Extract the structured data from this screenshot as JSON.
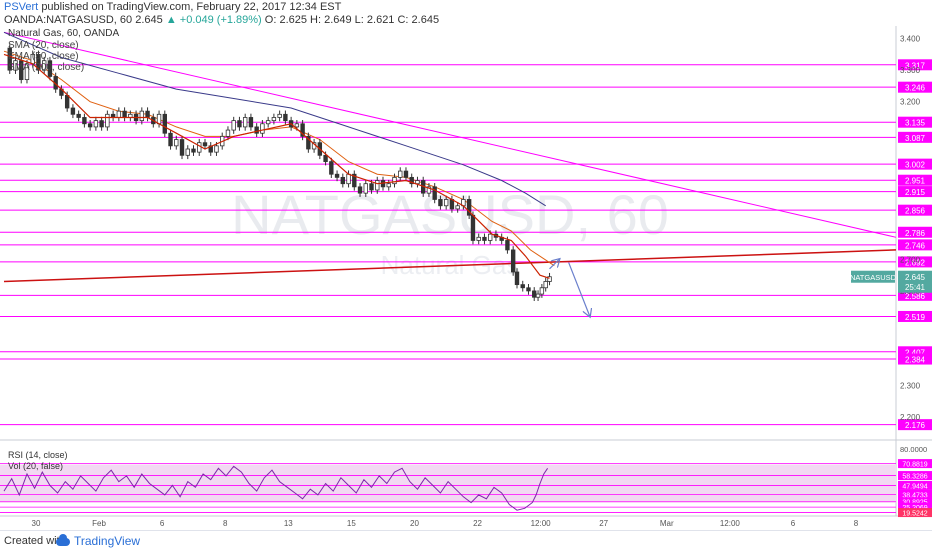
{
  "header": {
    "author": "PSVert",
    "published": "published on TradingView.com, February 22, 2017 12:34 EST",
    "symbol": "OANDA:NATGASUSD, 60",
    "last": "2.645",
    "change": "▲ +0.049 (+1.89%)",
    "ohlc": "O: 2.625 H: 2.649 L: 2.621 C: 2.645"
  },
  "legend": {
    "title": "Natural Gas, 60, OANDA",
    "ind1": "SMA (20, close)",
    "ind2": "EMA (50, close)",
    "ind3": "SMA (200, close)"
  },
  "watermark": {
    "main": "NATGASUSD, 60",
    "sub": "Natural Gas"
  },
  "footer": {
    "created": "Created with",
    "brand": "TradingView"
  },
  "colors": {
    "price_line": "#ff00ff",
    "trend_red": "#cc1111",
    "sma20": "#cc2200",
    "ema50": "#e06010",
    "sma200": "#3a3a8a",
    "rsi": "#7b2aa8",
    "rsi_band": "#f2d9f2",
    "arrow": "#6a7fcc"
  },
  "chart_data": {
    "type": "line",
    "title": "Natural Gas, 60, OANDA",
    "ylim": [
      2.14,
      3.44
    ],
    "x_ticks": [
      "30",
      "Feb",
      "6",
      "8",
      "13",
      "15",
      "20",
      "22",
      "12:00",
      "27",
      "Mar",
      "12:00",
      "6",
      "8"
    ],
    "y_ticks": [
      "3.400",
      "3.300",
      "3.200",
      "2.700",
      "2.600",
      "2.300",
      "2.200"
    ],
    "horizontal_levels": [
      3.317,
      3.246,
      3.135,
      3.087,
      3.002,
      2.951,
      2.915,
      2.856,
      2.786,
      2.746,
      2.692,
      2.586,
      2.519,
      2.407,
      2.384,
      2.176
    ],
    "level_labels": [
      "3.317",
      "3.246",
      "3.135",
      "3.087",
      "3.002",
      "2.951",
      "2.915",
      "2.856",
      "2.786",
      "2.746",
      "2.692",
      "2.586",
      "2.519",
      "2.407",
      "2.384",
      "2.176"
    ],
    "last_price_label": {
      "name": "NATGASUSD",
      "value": "2.645",
      "countdown": "25:41"
    },
    "price_series": [
      [
        0,
        3.37
      ],
      [
        6,
        3.3
      ],
      [
        12,
        3.33
      ],
      [
        18,
        3.27
      ],
      [
        24,
        3.32
      ],
      [
        30,
        3.35
      ],
      [
        36,
        3.3
      ],
      [
        42,
        3.33
      ],
      [
        48,
        3.28
      ],
      [
        54,
        3.24
      ],
      [
        60,
        3.22
      ],
      [
        66,
        3.18
      ],
      [
        72,
        3.16
      ],
      [
        78,
        3.15
      ],
      [
        84,
        3.13
      ],
      [
        90,
        3.12
      ],
      [
        96,
        3.14
      ],
      [
        102,
        3.12
      ],
      [
        108,
        3.16
      ],
      [
        114,
        3.15
      ],
      [
        120,
        3.17
      ],
      [
        126,
        3.15
      ],
      [
        132,
        3.16
      ],
      [
        138,
        3.14
      ],
      [
        144,
        3.17
      ],
      [
        150,
        3.15
      ],
      [
        156,
        3.13
      ],
      [
        162,
        3.16
      ],
      [
        168,
        3.1
      ],
      [
        174,
        3.06
      ],
      [
        180,
        3.08
      ],
      [
        186,
        3.03
      ],
      [
        192,
        3.05
      ],
      [
        198,
        3.04
      ],
      [
        204,
        3.07
      ],
      [
        210,
        3.06
      ],
      [
        216,
        3.04
      ],
      [
        222,
        3.06
      ],
      [
        228,
        3.09
      ],
      [
        234,
        3.11
      ],
      [
        240,
        3.14
      ],
      [
        246,
        3.12
      ],
      [
        252,
        3.15
      ],
      [
        258,
        3.12
      ],
      [
        264,
        3.1
      ],
      [
        270,
        3.13
      ],
      [
        276,
        3.14
      ],
      [
        282,
        3.15
      ],
      [
        288,
        3.16
      ],
      [
        294,
        3.14
      ],
      [
        300,
        3.12
      ],
      [
        306,
        3.13
      ],
      [
        312,
        3.09
      ],
      [
        318,
        3.05
      ],
      [
        324,
        3.07
      ],
      [
        330,
        3.03
      ],
      [
        336,
        3.01
      ],
      [
        342,
        2.97
      ],
      [
        348,
        2.96
      ],
      [
        354,
        2.94
      ],
      [
        360,
        2.97
      ],
      [
        366,
        2.93
      ],
      [
        372,
        2.91
      ],
      [
        378,
        2.94
      ],
      [
        384,
        2.92
      ],
      [
        390,
        2.95
      ],
      [
        396,
        2.93
      ],
      [
        402,
        2.94
      ],
      [
        408,
        2.96
      ],
      [
        414,
        2.98
      ],
      [
        420,
        2.96
      ],
      [
        426,
        2.94
      ],
      [
        432,
        2.95
      ],
      [
        438,
        2.91
      ],
      [
        444,
        2.93
      ],
      [
        450,
        2.89
      ],
      [
        456,
        2.87
      ],
      [
        462,
        2.89
      ],
      [
        468,
        2.86
      ],
      [
        474,
        2.87
      ],
      [
        480,
        2.89
      ],
      [
        486,
        2.84
      ],
      [
        490,
        2.76
      ],
      [
        496,
        2.77
      ],
      [
        502,
        2.76
      ],
      [
        508,
        2.78
      ],
      [
        514,
        2.77
      ],
      [
        520,
        2.76
      ],
      [
        526,
        2.73
      ],
      [
        532,
        2.66
      ],
      [
        536,
        2.62
      ],
      [
        542,
        2.61
      ],
      [
        548,
        2.6
      ],
      [
        554,
        2.58
      ],
      [
        558,
        2.59
      ],
      [
        562,
        2.61
      ],
      [
        566,
        2.63
      ],
      [
        570,
        2.645
      ]
    ],
    "sma20_series": [
      [
        0,
        3.35
      ],
      [
        30,
        3.32
      ],
      [
        60,
        3.24
      ],
      [
        90,
        3.15
      ],
      [
        120,
        3.15
      ],
      [
        150,
        3.15
      ],
      [
        180,
        3.1
      ],
      [
        210,
        3.05
      ],
      [
        240,
        3.09
      ],
      [
        270,
        3.11
      ],
      [
        300,
        3.13
      ],
      [
        330,
        3.05
      ],
      [
        360,
        2.97
      ],
      [
        390,
        2.94
      ],
      [
        420,
        2.95
      ],
      [
        450,
        2.92
      ],
      [
        480,
        2.87
      ],
      [
        510,
        2.78
      ],
      [
        530,
        2.76
      ],
      [
        545,
        2.71
      ],
      [
        560,
        2.65
      ],
      [
        570,
        2.64
      ]
    ],
    "ema50_series": [
      [
        0,
        3.36
      ],
      [
        30,
        3.33
      ],
      [
        60,
        3.27
      ],
      [
        90,
        3.2
      ],
      [
        120,
        3.17
      ],
      [
        150,
        3.16
      ],
      [
        180,
        3.12
      ],
      [
        210,
        3.09
      ],
      [
        240,
        3.09
      ],
      [
        270,
        3.11
      ],
      [
        300,
        3.12
      ],
      [
        330,
        3.08
      ],
      [
        360,
        3.01
      ],
      [
        390,
        2.97
      ],
      [
        420,
        2.96
      ],
      [
        450,
        2.93
      ],
      [
        480,
        2.89
      ],
      [
        510,
        2.82
      ],
      [
        530,
        2.79
      ],
      [
        550,
        2.73
      ],
      [
        575,
        2.68
      ]
    ],
    "sma200_series": [
      [
        0,
        3.42
      ],
      [
        60,
        3.34
      ],
      [
        120,
        3.29
      ],
      [
        180,
        3.24
      ],
      [
        240,
        3.21
      ],
      [
        300,
        3.18
      ],
      [
        360,
        3.12
      ],
      [
        420,
        3.06
      ],
      [
        480,
        3.0
      ],
      [
        520,
        2.95
      ],
      [
        545,
        2.91
      ],
      [
        566,
        2.87
      ]
    ],
    "descending_trendline": [
      [
        0,
        3.42
      ],
      [
        932,
        2.77
      ]
    ],
    "ascending_trendline": [
      [
        0,
        2.63
      ],
      [
        932,
        2.73
      ]
    ],
    "projection_arrows": [
      {
        "from": [
          570,
          2.67
        ],
        "to": [
          580,
          2.7
        ]
      },
      {
        "from": [
          590,
          2.69
        ],
        "to": [
          612,
          2.52
        ]
      }
    ],
    "rsi": {
      "label": "RSI (14, close)",
      "vol_label": "Vol (20, false)",
      "ylim": [
        18,
        82
      ],
      "top_tick": "80.0000",
      "levels": [
        "70.8819",
        "58.3286",
        "47.9494",
        "38.4733",
        "30.8925",
        "25.2069",
        "19.5242"
      ],
      "level_values": [
        70.88,
        58.33,
        47.95,
        38.47,
        30.89,
        25.21,
        19.52
      ],
      "band": [
        30,
        70
      ],
      "values": [
        [
          0,
          42
        ],
        [
          8,
          55
        ],
        [
          16,
          38
        ],
        [
          24,
          60
        ],
        [
          32,
          45
        ],
        [
          40,
          62
        ],
        [
          48,
          48
        ],
        [
          56,
          40
        ],
        [
          64,
          52
        ],
        [
          72,
          44
        ],
        [
          80,
          58
        ],
        [
          88,
          50
        ],
        [
          96,
          42
        ],
        [
          104,
          56
        ],
        [
          112,
          64
        ],
        [
          120,
          52
        ],
        [
          128,
          58
        ],
        [
          136,
          46
        ],
        [
          144,
          60
        ],
        [
          152,
          50
        ],
        [
          160,
          44
        ],
        [
          168,
          38
        ],
        [
          176,
          48
        ],
        [
          184,
          36
        ],
        [
          192,
          52
        ],
        [
          200,
          46
        ],
        [
          208,
          60
        ],
        [
          216,
          54
        ],
        [
          224,
          66
        ],
        [
          232,
          58
        ],
        [
          240,
          68
        ],
        [
          248,
          62
        ],
        [
          256,
          50
        ],
        [
          264,
          42
        ],
        [
          272,
          56
        ],
        [
          280,
          64
        ],
        [
          288,
          52
        ],
        [
          296,
          46
        ],
        [
          304,
          40
        ],
        [
          312,
          34
        ],
        [
          320,
          44
        ],
        [
          328,
          38
        ],
        [
          336,
          50
        ],
        [
          344,
          42
        ],
        [
          352,
          56
        ],
        [
          360,
          48
        ],
        [
          368,
          40
        ],
        [
          376,
          54
        ],
        [
          384,
          46
        ],
        [
          392,
          58
        ],
        [
          400,
          50
        ],
        [
          408,
          62
        ],
        [
          416,
          66
        ],
        [
          424,
          52
        ],
        [
          432,
          44
        ],
        [
          440,
          56
        ],
        [
          448,
          48
        ],
        [
          456,
          40
        ],
        [
          464,
          52
        ],
        [
          472,
          44
        ],
        [
          480,
          36
        ],
        [
          488,
          30
        ],
        [
          496,
          38
        ],
        [
          504,
          34
        ],
        [
          512,
          46
        ],
        [
          520,
          40
        ],
        [
          528,
          28
        ],
        [
          536,
          22
        ],
        [
          544,
          24
        ],
        [
          552,
          30
        ],
        [
          556,
          38
        ],
        [
          560,
          50
        ],
        [
          564,
          60
        ],
        [
          568,
          66
        ]
      ]
    }
  }
}
